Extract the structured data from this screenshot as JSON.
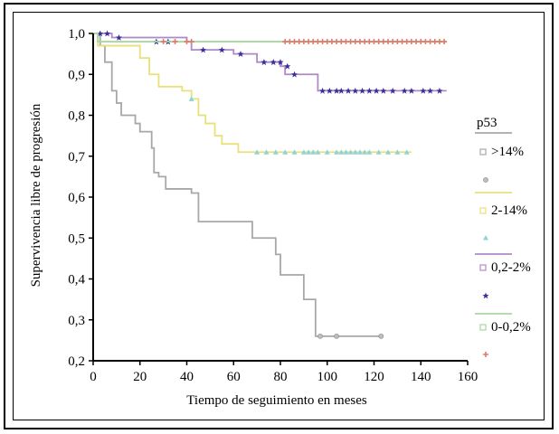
{
  "chart_data": {
    "type": "line",
    "step": true,
    "xlabel": "Tiempo de seguimiento en meses",
    "ylabel": "Supervivencia libre de progresión",
    "xlim": [
      0,
      160
    ],
    "ylim": [
      0.2,
      1.0
    ],
    "xticks": [
      {
        "value": 0,
        "label": "0"
      },
      {
        "value": 20,
        "label": "20"
      },
      {
        "value": 40,
        "label": "40"
      },
      {
        "value": 60,
        "label": "60"
      },
      {
        "value": 80,
        "label": "80"
      },
      {
        "value": 100,
        "label": "100"
      },
      {
        "value": 120,
        "label": "120"
      },
      {
        "value": 140,
        "label": "140"
      },
      {
        "value": 160,
        "label": "160"
      }
    ],
    "yticks": [
      {
        "value": 0.2,
        "label": "0,2"
      },
      {
        "value": 0.3,
        "label": "0,3"
      },
      {
        "value": 0.4,
        "label": "0,4"
      },
      {
        "value": 0.5,
        "label": "0,5"
      },
      {
        "value": 0.6,
        "label": "0,6"
      },
      {
        "value": 0.7,
        "label": "0,7"
      },
      {
        "value": 0.8,
        "label": "0,8"
      },
      {
        "value": 0.9,
        "label": "0,9"
      },
      {
        "value": 1.0,
        "label": "1,0"
      }
    ],
    "legend": {
      "title": "p53",
      "placement": "right"
    },
    "series": [
      {
        "name": ">14%",
        "color": "#a8a8a8",
        "marker": "circle",
        "steps": [
          [
            0,
            1.0
          ],
          [
            3,
            0.97
          ],
          [
            5,
            0.93
          ],
          [
            8,
            0.86
          ],
          [
            10,
            0.83
          ],
          [
            12,
            0.8
          ],
          [
            18,
            0.78
          ],
          [
            20,
            0.76
          ],
          [
            25,
            0.72
          ],
          [
            26,
            0.66
          ],
          [
            28,
            0.65
          ],
          [
            31,
            0.62
          ],
          [
            42,
            0.61
          ],
          [
            45,
            0.54
          ],
          [
            68,
            0.5
          ],
          [
            78,
            0.46
          ],
          [
            80,
            0.41
          ],
          [
            90,
            0.35
          ],
          [
            95,
            0.26
          ],
          [
            124,
            0.26
          ]
        ],
        "censored": [
          [
            97,
            0.26
          ],
          [
            104,
            0.26
          ],
          [
            123,
            0.26
          ]
        ]
      },
      {
        "name": "2-14%",
        "color": "#e8e07a",
        "marker": "triangle",
        "steps": [
          [
            0,
            1.0
          ],
          [
            2,
            0.97
          ],
          [
            18,
            0.97
          ],
          [
            20,
            0.94
          ],
          [
            24,
            0.9
          ],
          [
            28,
            0.87
          ],
          [
            38,
            0.86
          ],
          [
            42,
            0.84
          ],
          [
            45,
            0.8
          ],
          [
            48,
            0.78
          ],
          [
            52,
            0.75
          ],
          [
            55,
            0.73
          ],
          [
            62,
            0.71
          ],
          [
            136,
            0.71
          ]
        ],
        "censored": [
          [
            42,
            0.84
          ],
          [
            70,
            0.71
          ],
          [
            74,
            0.71
          ],
          [
            78,
            0.71
          ],
          [
            82,
            0.71
          ],
          [
            86,
            0.71
          ],
          [
            90,
            0.71
          ],
          [
            92,
            0.71
          ],
          [
            94,
            0.71
          ],
          [
            96,
            0.71
          ],
          [
            100,
            0.71
          ],
          [
            104,
            0.71
          ],
          [
            106,
            0.71
          ],
          [
            108,
            0.71
          ],
          [
            110,
            0.71
          ],
          [
            112,
            0.71
          ],
          [
            114,
            0.71
          ],
          [
            116,
            0.71
          ],
          [
            118,
            0.71
          ],
          [
            122,
            0.71
          ],
          [
            126,
            0.71
          ],
          [
            130,
            0.71
          ],
          [
            134,
            0.71
          ]
        ]
      },
      {
        "name": "0,2-2%",
        "color": "#b088c8",
        "marker": "star",
        "steps": [
          [
            0,
            1.0
          ],
          [
            5,
            1.0
          ],
          [
            8,
            0.99
          ],
          [
            40,
            0.98
          ],
          [
            42,
            0.96
          ],
          [
            57,
            0.96
          ],
          [
            60,
            0.95
          ],
          [
            70,
            0.93
          ],
          [
            80,
            0.92
          ],
          [
            82,
            0.9
          ],
          [
            90,
            0.9
          ],
          [
            96,
            0.86
          ],
          [
            151,
            0.86
          ]
        ],
        "censored": [
          [
            3,
            1.0
          ],
          [
            6,
            1.0
          ],
          [
            11,
            0.99
          ],
          [
            27,
            0.98
          ],
          [
            32,
            0.98
          ],
          [
            47,
            0.96
          ],
          [
            55,
            0.96
          ],
          [
            63,
            0.95
          ],
          [
            73,
            0.93
          ],
          [
            77,
            0.93
          ],
          [
            80,
            0.93
          ],
          [
            83,
            0.92
          ],
          [
            86,
            0.9
          ],
          [
            98,
            0.86
          ],
          [
            101,
            0.86
          ],
          [
            104,
            0.86
          ],
          [
            106,
            0.86
          ],
          [
            109,
            0.86
          ],
          [
            112,
            0.86
          ],
          [
            115,
            0.86
          ],
          [
            118,
            0.86
          ],
          [
            121,
            0.86
          ],
          [
            124,
            0.86
          ],
          [
            128,
            0.86
          ],
          [
            133,
            0.86
          ],
          [
            136,
            0.86
          ],
          [
            141,
            0.86
          ],
          [
            144,
            0.86
          ],
          [
            148,
            0.86
          ]
        ]
      },
      {
        "name": "0-0,2%",
        "color": "#a8d8a0",
        "marker": "plus",
        "steps": [
          [
            0,
            1.0
          ],
          [
            2,
            0.98
          ],
          [
            151,
            0.98
          ]
        ],
        "censored": [
          [
            30,
            0.98
          ],
          [
            35,
            0.98
          ],
          [
            40,
            0.98
          ],
          [
            42,
            0.98
          ],
          [
            82,
            0.98
          ],
          [
            84,
            0.98
          ],
          [
            86,
            0.98
          ],
          [
            88,
            0.98
          ],
          [
            90,
            0.98
          ],
          [
            92,
            0.98
          ],
          [
            94,
            0.98
          ],
          [
            96,
            0.98
          ],
          [
            98,
            0.98
          ],
          [
            100,
            0.98
          ],
          [
            102,
            0.98
          ],
          [
            104,
            0.98
          ],
          [
            106,
            0.98
          ],
          [
            108,
            0.98
          ],
          [
            110,
            0.98
          ],
          [
            112,
            0.98
          ],
          [
            114,
            0.98
          ],
          [
            116,
            0.98
          ],
          [
            118,
            0.98
          ],
          [
            120,
            0.98
          ],
          [
            122,
            0.98
          ],
          [
            124,
            0.98
          ],
          [
            126,
            0.98
          ],
          [
            128,
            0.98
          ],
          [
            130,
            0.98
          ],
          [
            132,
            0.98
          ],
          [
            134,
            0.98
          ],
          [
            136,
            0.98
          ],
          [
            138,
            0.98
          ],
          [
            140,
            0.98
          ],
          [
            142,
            0.98
          ],
          [
            144,
            0.98
          ],
          [
            146,
            0.98
          ],
          [
            148,
            0.98
          ],
          [
            150,
            0.98
          ]
        ],
        "censored_color": "#e07a6a"
      }
    ]
  }
}
